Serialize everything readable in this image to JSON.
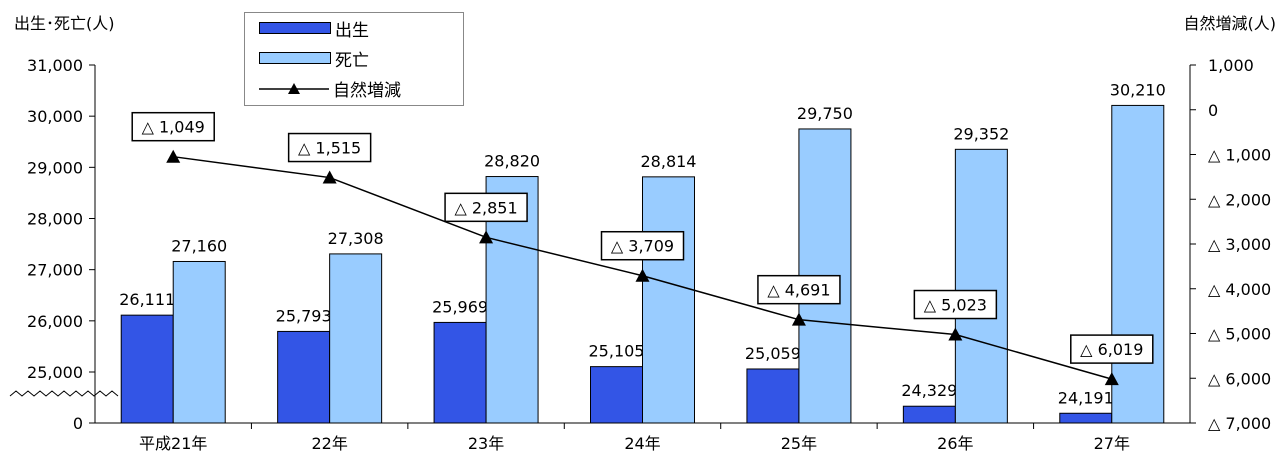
{
  "chart_data": {
    "type": "bar",
    "ylabel_left": "出生･死亡(人)",
    "ylabel_right": "自然増減(人)",
    "categories": [
      "平成21年",
      "22年",
      "23年",
      "24年",
      "25年",
      "26年",
      "27年"
    ],
    "series": [
      {
        "name": "出生",
        "type": "bar",
        "axis": "left",
        "color": "#3355e6",
        "values": [
          26111,
          25793,
          25969,
          25105,
          25059,
          24329,
          24191
        ],
        "labels": [
          "26,111",
          "25,793",
          "25,969",
          "25,105",
          "25,059",
          "24,329",
          "24,191"
        ]
      },
      {
        "name": "死亡",
        "type": "bar",
        "axis": "left",
        "color": "#99ccff",
        "values": [
          27160,
          27308,
          28820,
          28814,
          29750,
          29352,
          30210
        ],
        "labels": [
          "27,160",
          "27,308",
          "28,820",
          "28,814",
          "29,750",
          "29,352",
          "30,210"
        ]
      },
      {
        "name": "自然増減",
        "type": "line",
        "axis": "right",
        "marker": "triangle",
        "values": [
          -1049,
          -1515,
          -2851,
          -3709,
          -4691,
          -5023,
          -6019
        ],
        "labels": [
          "△ 1,049",
          "△ 1,515",
          "△ 2,851",
          "△ 3,709",
          "△ 4,691",
          "△ 5,023",
          "△ 6,019"
        ]
      }
    ],
    "left_axis": {
      "ticks": [
        {
          "value": 31000,
          "label": "31,000"
        },
        {
          "value": 30000,
          "label": "30,000"
        },
        {
          "value": 29000,
          "label": "29,000"
        },
        {
          "value": 28000,
          "label": "28,000"
        },
        {
          "value": 27000,
          "label": "27,000"
        },
        {
          "value": 26000,
          "label": "26,000"
        },
        {
          "value": 25000,
          "label": "25,000"
        },
        {
          "value": 0,
          "label": "0"
        }
      ],
      "broken": true,
      "range": [
        24000,
        31000
      ]
    },
    "right_axis": {
      "ticks": [
        {
          "value": 1000,
          "label": "1,000"
        },
        {
          "value": 0,
          "label": "0"
        },
        {
          "value": -1000,
          "label": "△ 1,000"
        },
        {
          "value": -2000,
          "label": "△ 2,000"
        },
        {
          "value": -3000,
          "label": "△ 3,000"
        },
        {
          "value": -4000,
          "label": "△ 4,000"
        },
        {
          "value": -5000,
          "label": "△ 5,000"
        },
        {
          "value": -6000,
          "label": "△ 6,000"
        },
        {
          "value": -7000,
          "label": "△ 7,000"
        }
      ],
      "range": [
        -7000,
        1000
      ]
    },
    "legend": {
      "position": "top-left"
    }
  }
}
